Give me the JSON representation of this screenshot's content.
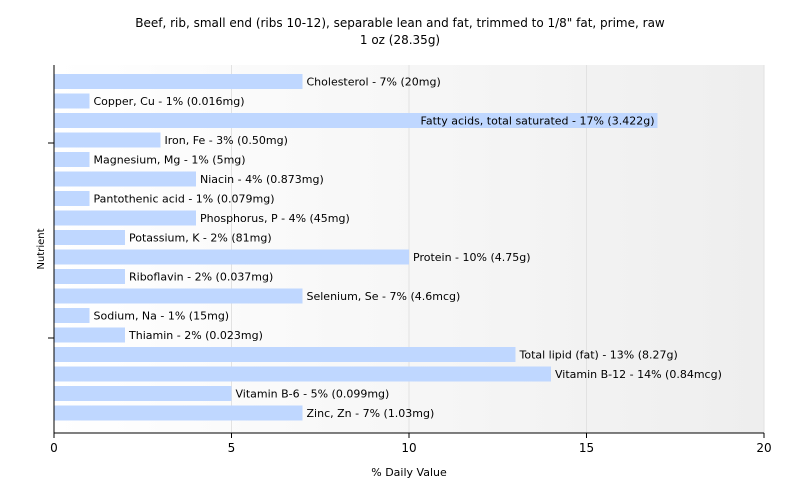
{
  "chart_data": {
    "type": "bar",
    "orientation": "horizontal",
    "title": "Beef, rib, small end (ribs 10-12), separable lean and fat, trimmed to 1/8\" fat, prime, raw",
    "subtitle": "1 oz (28.35g)",
    "xlabel": "% Daily Value",
    "ylabel": "Nutrient",
    "xlim": [
      0,
      20
    ],
    "xticks": [
      "0",
      "5",
      "10",
      "15",
      "20"
    ],
    "bar_color": "#bfd7ff",
    "categories": [
      "Cholesterol",
      "Copper, Cu",
      "Fatty acids, total saturated",
      "Iron, Fe",
      "Magnesium, Mg",
      "Niacin",
      "Pantothenic acid",
      "Phosphorus, P",
      "Potassium, K",
      "Protein",
      "Riboflavin",
      "Selenium, Se",
      "Sodium, Na",
      "Thiamin",
      "Total lipid (fat)",
      "Vitamin B-12",
      "Vitamin B-6",
      "Zinc, Zn"
    ],
    "values": [
      7,
      1,
      17,
      3,
      1,
      4,
      1,
      4,
      2,
      10,
      2,
      7,
      1,
      2,
      13,
      14,
      5,
      7
    ],
    "labels": [
      "Cholesterol - 7% (20mg)",
      "Copper, Cu - 1% (0.016mg)",
      "Fatty acids, total saturated - 17% (3.422g)",
      "Iron, Fe - 3% (0.50mg)",
      "Magnesium, Mg - 1% (5mg)",
      "Niacin - 4% (0.873mg)",
      "Pantothenic acid - 1% (0.079mg)",
      "Phosphorus, P - 4% (45mg)",
      "Potassium, K - 2% (81mg)",
      "Protein - 10% (4.75g)",
      "Riboflavin - 2% (0.037mg)",
      "Selenium, Se - 7% (4.6mcg)",
      "Sodium, Na - 1% (15mg)",
      "Thiamin - 2% (0.023mg)",
      "Total lipid (fat) - 13% (8.27g)",
      "Vitamin B-12 - 14% (0.84mcg)",
      "Vitamin B-6 - 5% (0.099mg)",
      "Zinc, Zn - 7% (1.03mg)"
    ],
    "grid": true
  }
}
